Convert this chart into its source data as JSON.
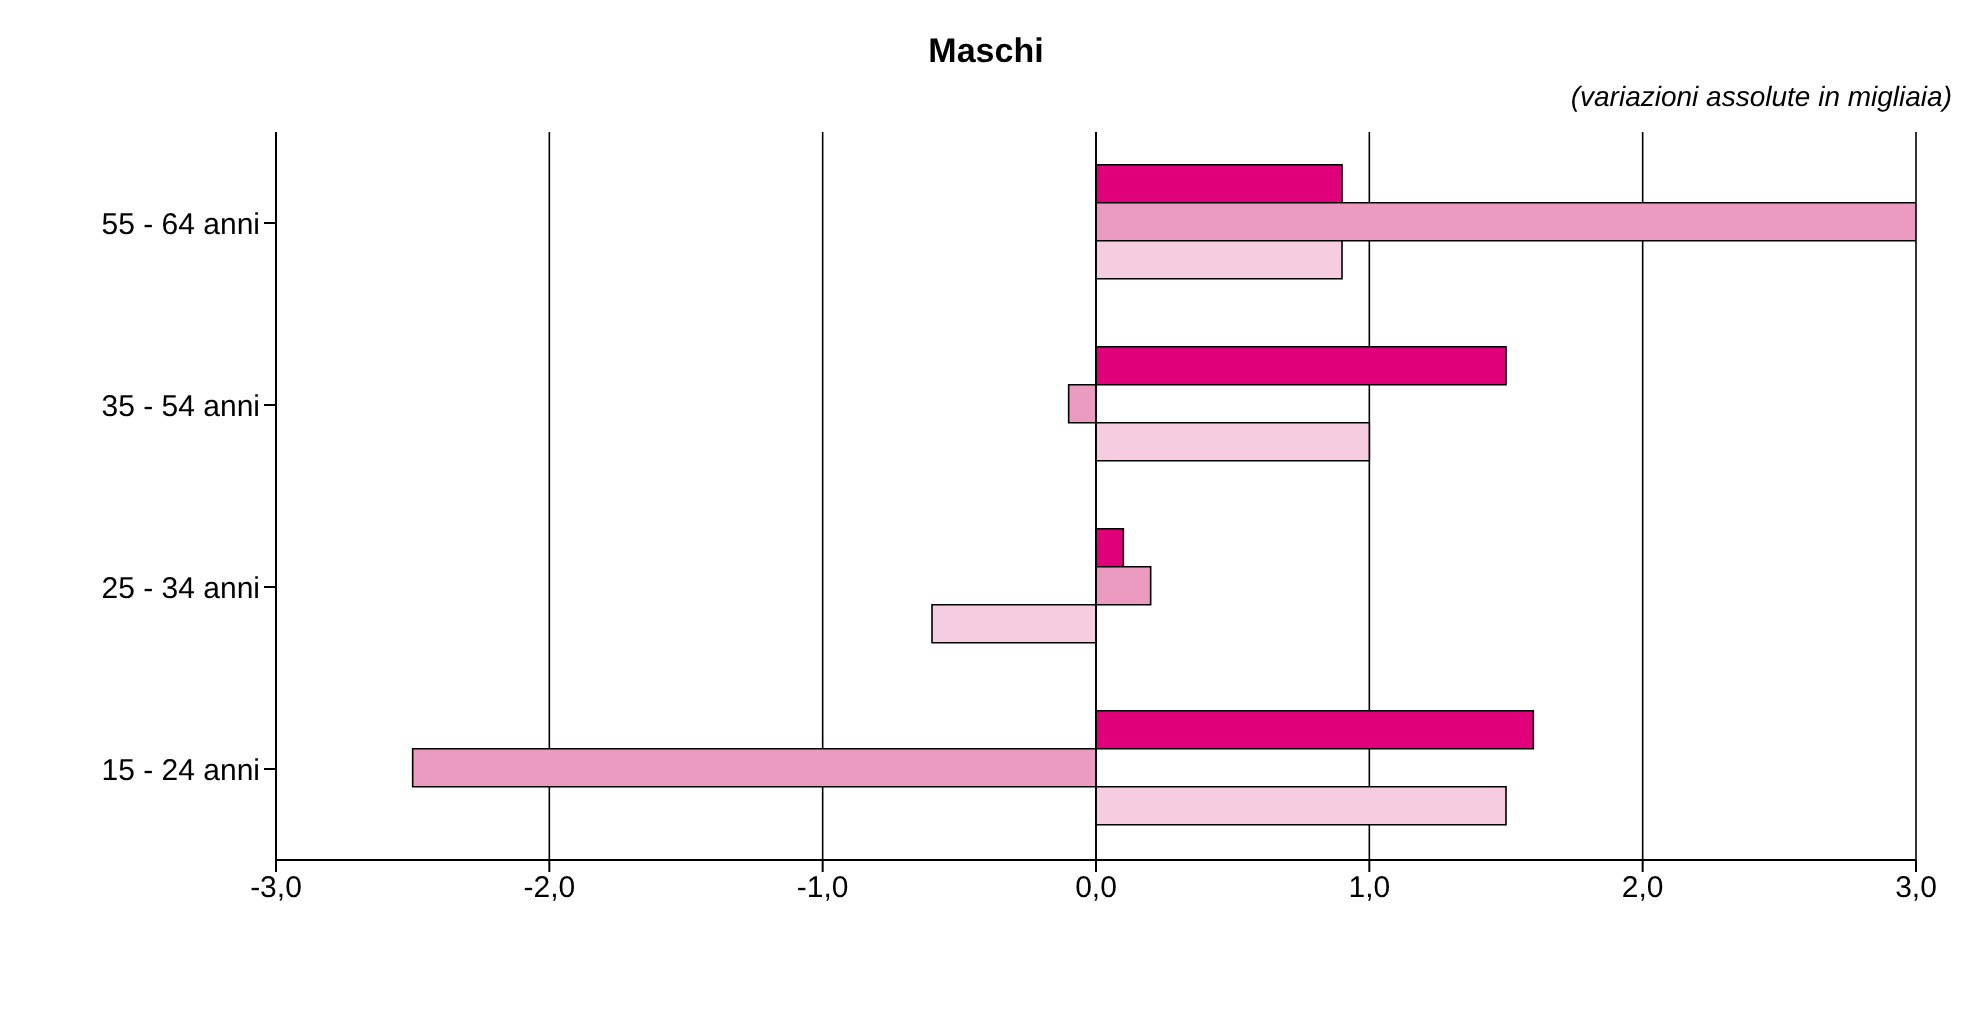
{
  "chart_data": {
    "type": "bar",
    "orientation": "horizontal",
    "title": "Maschi",
    "subtitle": "(variazioni assolute in migliaia)",
    "categories": [
      "55 - 64  anni",
      "35 - 54  anni",
      "25 - 34  anni",
      "15 - 24  anni"
    ],
    "series": [
      {
        "color": "#e0007a",
        "values": [
          0.9,
          1.5,
          0.1,
          1.6
        ]
      },
      {
        "color": "#eb9ac0",
        "values": [
          3.0,
          -0.1,
          0.2,
          -2.5
        ]
      },
      {
        "color": "#f6cde0",
        "values": [
          0.9,
          1.0,
          -0.6,
          1.5
        ]
      }
    ],
    "xlim": [
      -3,
      3
    ],
    "xticks": [
      {
        "value": -3,
        "label": "-3,0"
      },
      {
        "value": -2,
        "label": "-2,0"
      },
      {
        "value": -1,
        "label": "-1,0"
      },
      {
        "value": 0,
        "label": "0,0"
      },
      {
        "value": 1,
        "label": "1,0"
      },
      {
        "value": 2,
        "label": "2,0"
      },
      {
        "value": 3,
        "label": "3,0"
      }
    ],
    "grid": "x",
    "legend": false
  }
}
